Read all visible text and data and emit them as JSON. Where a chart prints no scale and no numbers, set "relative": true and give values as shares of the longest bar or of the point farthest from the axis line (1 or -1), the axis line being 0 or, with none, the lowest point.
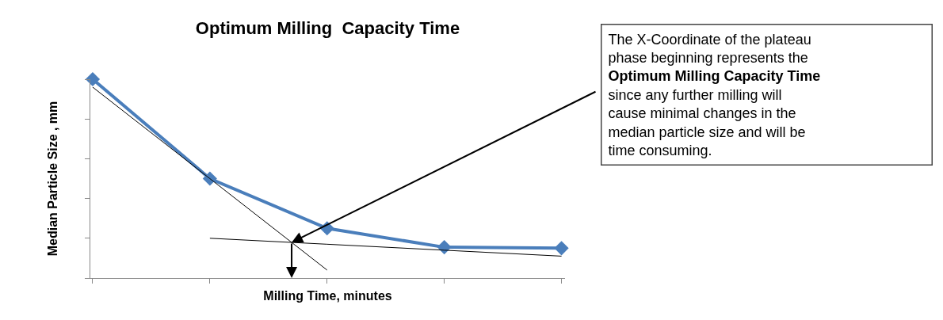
{
  "chart_data": {
    "type": "line",
    "title": "Optimum Milling  Capacity Time",
    "xlabel": "Milling Time, minutes",
    "ylabel": "Median Particle Size , mm",
    "relative": true,
    "categories": [
      null,
      null,
      null,
      null,
      null
    ],
    "marker": "diamond",
    "grid": false,
    "series": [
      {
        "color": "#4a7ebb",
        "values": [
          1.0,
          0.5,
          0.25,
          0.155,
          0.15
        ]
      },
      {
        "type": "line",
        "color": "#000000",
        "marker": "none",
        "values": [
          0.96,
          0.5,
          0.04,
          null,
          null
        ]
      },
      {
        "type": "line",
        "color": "#000000",
        "marker": "none",
        "values": [
          null,
          0.2,
          0.17,
          0.14,
          0.11
        ]
      }
    ],
    "annotations": [
      "The X-Coordinate of the plateau\nphase beginning represents the\nOptimum Milling Capacity Time\nsince any further milling will\ncause minimal changes in the\nmedian particle size and will be\ntime consuming."
    ]
  }
}
